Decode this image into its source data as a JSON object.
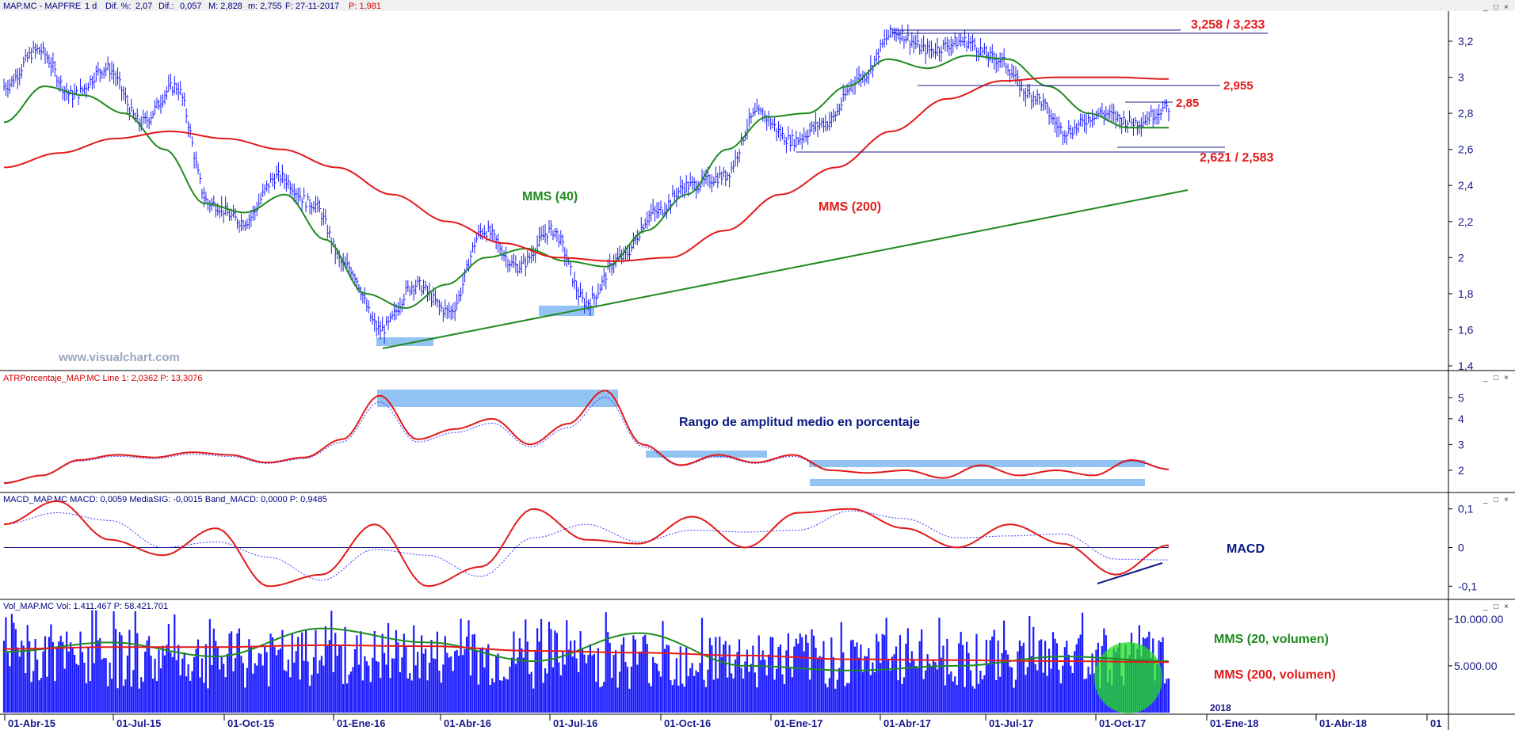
{
  "header": {
    "symbol": "MAP.MC - MAPFRE",
    "period": "1 d",
    "dif_pct_label": "Dif. %:",
    "dif_pct_value": "2,07",
    "dif_label": "Dif.:",
    "dif_value": "0,057",
    "max_label": "M: 2,828",
    "min_label": "m: 2,755",
    "date_label": "F: 27-11-2017",
    "price_label": "P: 1,981"
  },
  "watermark": "www.visualchart.com",
  "window_buttons": [
    "_",
    "□",
    "×"
  ],
  "colors": {
    "price": "#1a1aff",
    "mms40": "#1f8a1f",
    "mms200": "#e31a1a",
    "annotation_red": "#e31a1a",
    "annotation_green": "#1f8a1f",
    "annotation_blue": "#0a1a80",
    "highlight": "#7fb8f0",
    "axis_text": "#1a1a8c",
    "volume": "#1a1aff"
  },
  "x_axis": {
    "labels": [
      "01-Abr-15",
      "01-Jul-15",
      "01-Oct-15",
      "01-Ene-16",
      "01-Abr-16",
      "01-Jul-16",
      "01-Oct-16",
      "01-Ene-17",
      "01-Abr-17",
      "01-Jul-17",
      "01-Oct-17",
      "01-Ene-18",
      "01-Abr-18",
      "01"
    ],
    "year_marker": "2018"
  },
  "chart_data": [
    {
      "type": "line",
      "name": "price_panel",
      "title": "MAP.MC - MAPFRE",
      "ylim": [
        1.4,
        3.3
      ],
      "yticks": [
        "3,2",
        "3",
        "2,8",
        "2,6",
        "2,4",
        "2,2",
        "2",
        "1,8",
        "1,6",
        "1,4"
      ],
      "ytick_values": [
        3.2,
        3.0,
        2.8,
        2.6,
        2.4,
        2.2,
        2.0,
        1.8,
        1.6,
        1.4
      ],
      "x": [
        "01-Abr-15",
        "01-Jul-15",
        "01-Oct-15",
        "01-Ene-16",
        "01-Abr-16",
        "01-Jul-16",
        "01-Oct-16",
        "01-Ene-17",
        "01-Abr-17",
        "01-Jul-17",
        "01-Oct-17",
        "27-11-2017"
      ],
      "series": [
        {
          "name": "Price",
          "values": [
            3.05,
            2.9,
            2.3,
            1.6,
            2.1,
            1.75,
            2.45,
            2.75,
            3.2,
            3.15,
            2.65,
            2.83
          ]
        },
        {
          "name": "MMS (40)",
          "values": [
            2.95,
            2.85,
            2.3,
            1.75,
            2.05,
            1.95,
            2.35,
            2.75,
            3.0,
            3.15,
            2.85,
            2.72
          ]
        },
        {
          "name": "MMS (200)",
          "values": [
            2.55,
            2.7,
            2.63,
            2.4,
            2.1,
            1.98,
            1.98,
            2.35,
            2.65,
            2.95,
            3.0,
            2.99
          ]
        }
      ],
      "annotations": {
        "resistance_top": "3,258 / 3,233",
        "resistance_mid": "2,955",
        "recent_high": "2,85",
        "support": "2,621 / 2,583",
        "mms40_label": "MMS (40)",
        "mms200_label": "MMS (200)"
      }
    },
    {
      "type": "line",
      "name": "atr_panel",
      "title": "ATRPorcentaje_MAP.MC Line 1: 2,0362 P: 13,3076",
      "ylim": [
        1.2,
        5.5
      ],
      "yticks": [
        "5",
        "4",
        "3",
        "2"
      ],
      "ytick_values": [
        5,
        4,
        3,
        2
      ],
      "series": [
        {
          "name": "Line 1",
          "values": [
            1.6,
            2.3,
            2.6,
            2.4,
            4.9,
            3.0,
            4.0,
            3.0,
            5.1,
            2.1,
            2.6,
            2.5,
            2.0,
            1.8,
            2.0,
            1.8,
            2.4,
            2.04
          ]
        }
      ],
      "annotation": "Rango de amplitud medio en porcentaje"
    },
    {
      "type": "line",
      "name": "macd_panel",
      "title": "MACD_MAP.MC MACD: 0,0059 MediaSIG: -0,0015 Band_MACD: 0,0000 P: 0,9485",
      "ylim": [
        -0.13,
        0.13
      ],
      "yticks": [
        "0,1",
        "0",
        "-0,1"
      ],
      "ytick_values": [
        0.1,
        0,
        -0.1
      ],
      "series": [
        {
          "name": "MACD",
          "values": [
            0.06,
            0.12,
            0.02,
            -0.02,
            0.05,
            -0.1,
            -0.07,
            0.06,
            -0.1,
            -0.05,
            0.1,
            0.02,
            0.01,
            0.08,
            0.0,
            0.09,
            0.1,
            0.05,
            0.0,
            0.06,
            0.01,
            -0.07,
            0.006
          ]
        }
      ],
      "annotation": "MACD"
    },
    {
      "type": "bar",
      "name": "volume_panel",
      "title": "Vol_MAP.MC Vol: 1.411.467 P: 58.421.701",
      "ylim": [
        0,
        11000000
      ],
      "yticks": [
        "10.000.00",
        "5.000.00"
      ],
      "ytick_values": [
        10000000,
        5000000
      ],
      "series": [
        {
          "name": "MMS (20, volumen)",
          "values": [
            6500000,
            7500000,
            6000000,
            9000000,
            7500000,
            5500000,
            8500000,
            5000000,
            4500000,
            5000000,
            6000000,
            5500000
          ]
        },
        {
          "name": "MMS (200, volumen)",
          "values": [
            6800000,
            7000000,
            7000000,
            7200000,
            7100000,
            6600000,
            6400000,
            6100000,
            5700000,
            5600000,
            5500000,
            5400000
          ]
        }
      ],
      "annotations": [
        "MMS (20, volumen)",
        "MMS (200, volumen)"
      ]
    }
  ]
}
